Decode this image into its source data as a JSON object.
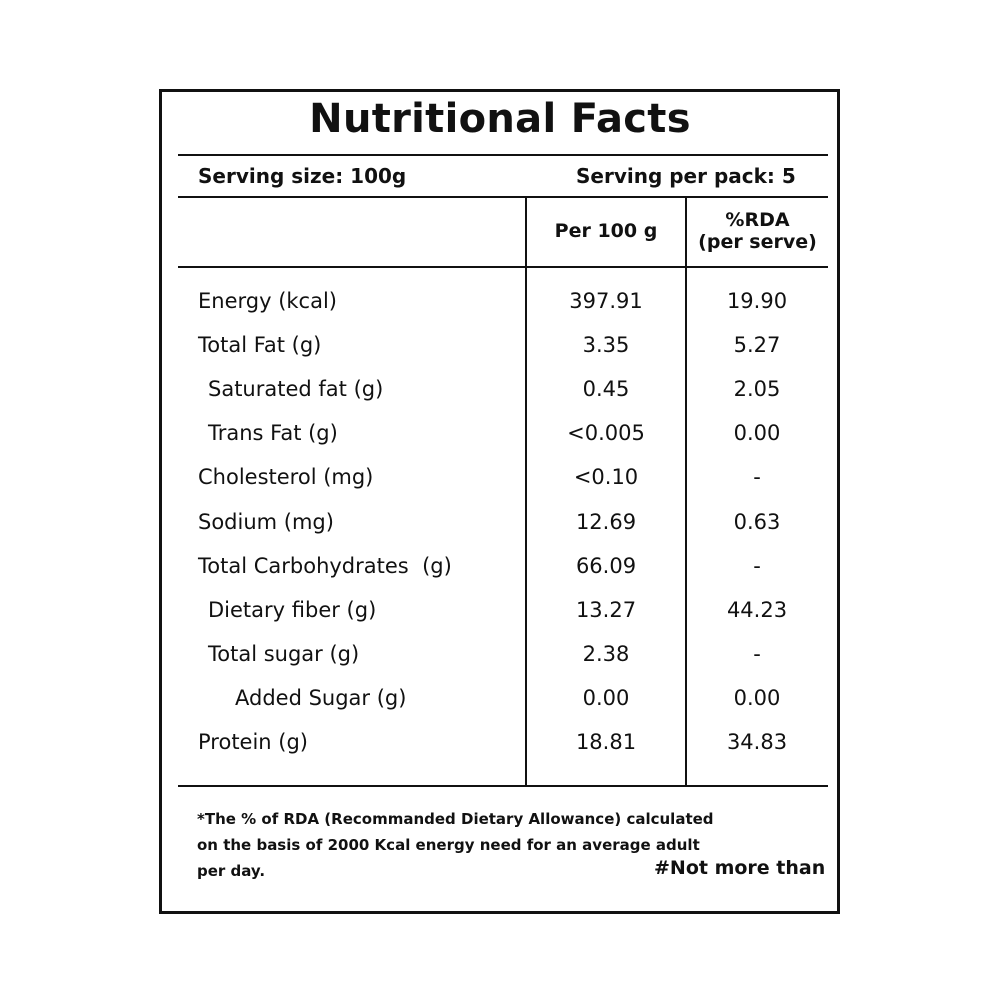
{
  "label": {
    "title": "Nutritional Facts",
    "serving_size": "Serving size: 100g",
    "servings_per_pack": "Serving per pack: 5",
    "columns": {
      "per_100g": "Per 100 g",
      "rda_line1": "%RDA",
      "rda_line2": "(per serve)"
    },
    "rows": [
      {
        "name": "Energy (kcal)",
        "per_100g": "397.91",
        "rda": "19.90",
        "indent": 0
      },
      {
        "name": "Total Fat (g)",
        "per_100g": "3.35",
        "rda": "5.27",
        "indent": 0
      },
      {
        "name": "Saturated fat (g)",
        "per_100g": "0.45",
        "rda": "2.05",
        "indent": 1
      },
      {
        "name": "Trans Fat (g)",
        "per_100g": "<0.005",
        "rda": "0.00",
        "indent": 1
      },
      {
        "name": "Cholesterol (mg)",
        "per_100g": "<0.10",
        "rda": "-",
        "indent": 0
      },
      {
        "name": "Sodium (mg)",
        "per_100g": "12.69",
        "rda": "0.63",
        "indent": 0
      },
      {
        "name": "Total Carbohydrates  (g)",
        "per_100g": "66.09",
        "rda": "-",
        "indent": 0
      },
      {
        "name": "Dietary fiber (g)",
        "per_100g": "13.27",
        "rda": "44.23",
        "indent": 1
      },
      {
        "name": "Total sugar (g)",
        "per_100g": "2.38",
        "rda": "-",
        "indent": 1
      },
      {
        "name": "Added Sugar (g)",
        "per_100g": "0.00",
        "rda": "0.00",
        "indent": 2
      },
      {
        "name": "Protein (g)",
        "per_100g": "18.81",
        "rda": "34.83",
        "indent": 0
      }
    ],
    "footnote": {
      "line1": "*The % of RDA (Recommanded Dietary Allowance) calculated",
      "line2": "on the basis of 2000 Kcal energy need for an average adult",
      "line3": "per day."
    },
    "not_more_than": "#Not more than"
  }
}
